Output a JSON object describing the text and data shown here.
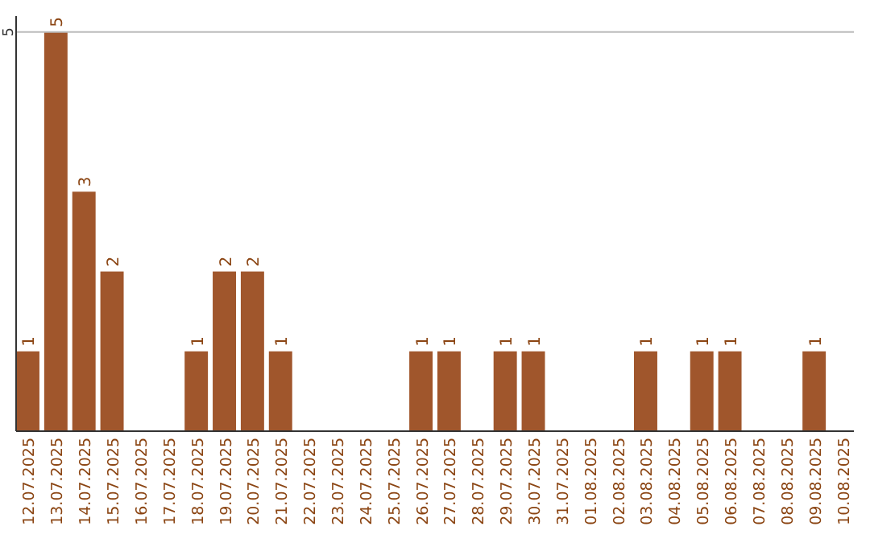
{
  "chart_data": {
    "type": "bar",
    "categories": [
      "12.07.2025",
      "13.07.2025",
      "14.07.2025",
      "15.07.2025",
      "16.07.2025",
      "17.07.2025",
      "18.07.2025",
      "19.07.2025",
      "20.07.2025",
      "21.07.2025",
      "22.07.2025",
      "23.07.2025",
      "24.07.2025",
      "25.07.2025",
      "26.07.2025",
      "27.07.2025",
      "28.07.2025",
      "29.07.2025",
      "30.07.2025",
      "31.07.2025",
      "01.08.2025",
      "02.08.2025",
      "03.08.2025",
      "04.08.2025",
      "05.08.2025",
      "06.08.2025",
      "07.08.2025",
      "08.08.2025",
      "09.08.2025",
      "10.08.2025"
    ],
    "values": [
      1,
      5,
      3,
      2,
      0,
      0,
      1,
      2,
      2,
      1,
      0,
      0,
      0,
      0,
      1,
      1,
      0,
      1,
      1,
      0,
      0,
      0,
      1,
      0,
      1,
      1,
      0,
      0,
      1,
      0
    ],
    "value_labels": [
      "1",
      "5",
      "3",
      "2",
      null,
      null,
      "1",
      "2",
      "2",
      "1",
      null,
      null,
      null,
      null,
      "1",
      "1",
      null,
      "1",
      "1",
      null,
      null,
      null,
      "1",
      null,
      "1",
      "1",
      null,
      null,
      "1",
      null
    ],
    "color": "#a0562c",
    "ylim": [
      0,
      5.2
    ],
    "yticks": [
      5
    ],
    "grid": "y"
  }
}
